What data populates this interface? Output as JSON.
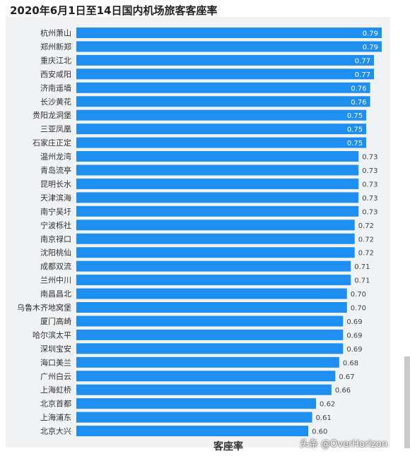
{
  "title": "2020年6月1日至14日国内机场旅客客座率",
  "watermark": "头条 @OverHorizon",
  "colors": {
    "bar": "#1e8ff0",
    "panel": "#f1f2f4"
  },
  "chart_data": {
    "type": "bar",
    "orientation": "horizontal",
    "title": "2020年6月1日至14日国内机场旅客客座率",
    "xlabel": "客座率",
    "ylabel": "",
    "xlim": [
      0,
      0.79
    ],
    "grid": false,
    "categories": [
      "杭州萧山",
      "郑州新郑",
      "重庆江北",
      "西安咸阳",
      "济南遥墙",
      "长沙黄花",
      "贵阳龙洞堡",
      "三亚凤凰",
      "石家庄正定",
      "温州龙湾",
      "青岛流亭",
      "昆明长水",
      "天津滨海",
      "南宁吴圩",
      "宁波栎社",
      "南京禄口",
      "沈阳桃仙",
      "成都双流",
      "兰州中川",
      "南昌昌北",
      "乌鲁木齐地窝堡",
      "厦门高崎",
      "哈尔滨太平",
      "深圳宝安",
      "海口美兰",
      "广州白云",
      "上海虹桥",
      "北京首都",
      "上海浦东",
      "北京大兴"
    ],
    "values": [
      0.79,
      0.79,
      0.77,
      0.77,
      0.76,
      0.76,
      0.75,
      0.75,
      0.75,
      0.73,
      0.73,
      0.73,
      0.73,
      0.73,
      0.72,
      0.72,
      0.72,
      0.71,
      0.71,
      0.7,
      0.7,
      0.69,
      0.69,
      0.69,
      0.68,
      0.67,
      0.66,
      0.62,
      0.61,
      0.6
    ],
    "data_labels": [
      "0.79",
      "0.79",
      "0.77",
      "0.77",
      "0.76",
      "0.76",
      "0.75",
      "0.75",
      "0.75",
      "0.73",
      "0.73",
      "0.73",
      "0.73",
      "0.73",
      "0.72",
      "0.72",
      "0.72",
      "0.71",
      "0.71",
      "0.70",
      "0.70",
      "0.69",
      "0.69",
      "0.69",
      "0.68",
      "0.67",
      "0.66",
      "0.62",
      "0.61",
      "0.60"
    ]
  }
}
